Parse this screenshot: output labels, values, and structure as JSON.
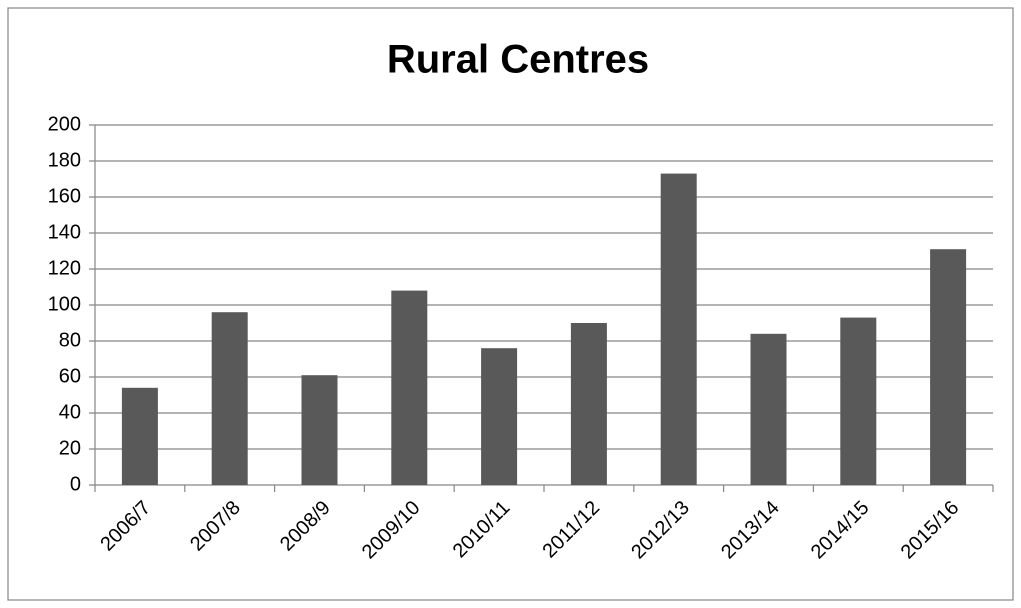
{
  "chart_data": {
    "type": "bar",
    "title": "Rural Centres",
    "categories": [
      "2006/7",
      "2007/8",
      "2008/9",
      "2009/10",
      "2010/11",
      "2011/12",
      "2012/13",
      "2013/14",
      "2014/15",
      "2015/16"
    ],
    "values": [
      54,
      96,
      61,
      108,
      76,
      90,
      173,
      84,
      93,
      131
    ],
    "color": "#595959",
    "ylim": [
      0,
      200
    ],
    "yticks": [
      0,
      20,
      40,
      60,
      80,
      100,
      120,
      140,
      160,
      180,
      200
    ],
    "grid": true
  }
}
